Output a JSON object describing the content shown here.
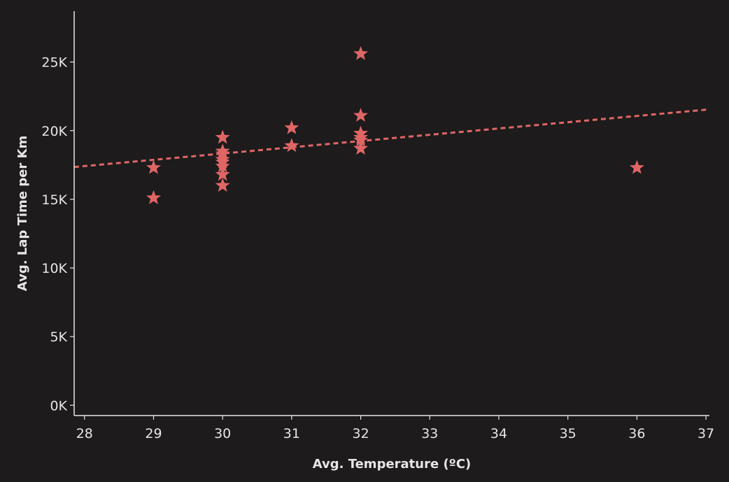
{
  "chart_data": {
    "type": "scatter",
    "title": "",
    "xlabel": "Avg. Temperature (ºC)",
    "ylabel": "Avg. Lap Time per Km",
    "xlim": [
      27.85,
      37.05
    ],
    "ylim": [
      -750,
      28700
    ],
    "x_ticks": [
      28,
      29,
      30,
      31,
      32,
      33,
      34,
      35,
      36,
      37
    ],
    "x_tick_labels": [
      "28",
      "29",
      "30",
      "31",
      "32",
      "33",
      "34",
      "35",
      "36",
      "37"
    ],
    "y_ticks": [
      0,
      5000,
      10000,
      15000,
      20000,
      25000
    ],
    "y_tick_labels": [
      "0K",
      "5K",
      "10K",
      "15K",
      "20K",
      "25K"
    ],
    "grid": false,
    "marker": "star",
    "marker_color": "#e06666",
    "series": [
      {
        "x": [
          29,
          29,
          30,
          30,
          30,
          30,
          30,
          30,
          30,
          30,
          31,
          31,
          32,
          32,
          32,
          32,
          32,
          32,
          36
        ],
        "y": [
          17300,
          15100,
          19500,
          18500,
          18300,
          17900,
          17700,
          17400,
          16800,
          16000,
          20200,
          18900,
          25600,
          21100,
          19800,
          19500,
          19300,
          18700,
          17300
        ]
      }
    ],
    "trend_line": {
      "style": "dashed",
      "color": "#e06666",
      "x": [
        27.85,
        37.05
      ],
      "y": [
        17350,
        21550
      ]
    }
  }
}
